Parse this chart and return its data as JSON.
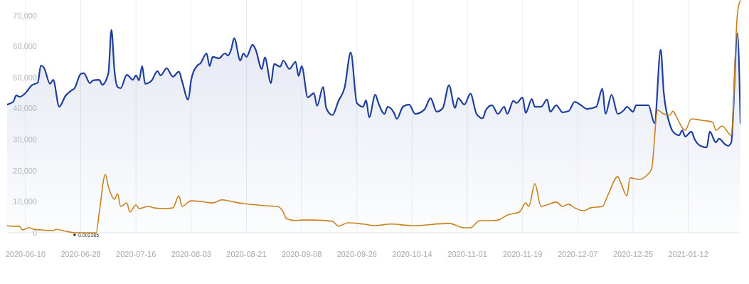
{
  "chart_data": {
    "type": "line",
    "xlim": [
      "2020-06-04",
      "2021-01-29"
    ],
    "xticks": [
      {
        "value": "2020-06-10",
        "label": "2020-06-10"
      },
      {
        "value": "2020-06-28",
        "label": "2020-06-28"
      },
      {
        "value": "2020-07-16",
        "label": "2020-07-16"
      },
      {
        "value": "2020-08-03",
        "label": "2020-08-03"
      },
      {
        "value": "2020-08-21",
        "label": "2020-08-21"
      },
      {
        "value": "2020-09-08",
        "label": "2020-09-08"
      },
      {
        "value": "2020-09-26",
        "label": "2020-09-26"
      },
      {
        "value": "2020-10-14",
        "label": "2020-10-14"
      },
      {
        "value": "2020-11-01",
        "label": "2020-11-01"
      },
      {
        "value": "2020-11-19",
        "label": "2020-11-19"
      },
      {
        "value": "2020-12-07",
        "label": "2020-12-07"
      },
      {
        "value": "2020-12-25",
        "label": "2020-12-25"
      },
      {
        "value": "2021-01-12",
        "label": "2021-01-12"
      }
    ],
    "ylim": [
      0,
      75000
    ],
    "yticks": [
      {
        "value": 0,
        "label": "0"
      },
      {
        "value": 10000,
        "label": "10,000"
      },
      {
        "value": 20000,
        "label": "20,000"
      },
      {
        "value": 30000,
        "label": "30,000"
      },
      {
        "value": 40000,
        "label": "40,000"
      },
      {
        "value": 50000,
        "label": "50,000"
      },
      {
        "value": 60000,
        "label": "60,000"
      },
      {
        "value": 70000,
        "label": "70,000"
      }
    ],
    "grid": "x",
    "marker": "none",
    "line_style": "solid",
    "annotations": [
      {
        "text": "0.002285",
        "x": "2020-06-26",
        "y": 0.002285
      }
    ],
    "series": [
      {
        "type": "area",
        "color": "#1f3f9a",
        "x": [
          "2020-06-04",
          "2020-06-06",
          "2020-06-07",
          "2020-06-08",
          "2020-06-10",
          "2020-06-12",
          "2020-06-14",
          "2020-06-15",
          "2020-06-16",
          "2020-06-18",
          "2020-06-19",
          "2020-06-21",
          "2020-06-23",
          "2020-06-25",
          "2020-06-26",
          "2020-06-28",
          "2020-06-29",
          "2020-07-01",
          "2020-07-02",
          "2020-07-04",
          "2020-07-05",
          "2020-07-07",
          "2020-07-08",
          "2020-07-09",
          "2020-07-10",
          "2020-07-11",
          "2020-07-13",
          "2020-07-15",
          "2020-07-16",
          "2020-07-17",
          "2020-07-18",
          "2020-07-19",
          "2020-07-21",
          "2020-07-23",
          "2020-07-24",
          "2020-07-26",
          "2020-07-28",
          "2020-07-30",
          "2020-07-31",
          "2020-08-02",
          "2020-08-03",
          "2020-08-05",
          "2020-08-06",
          "2020-08-08",
          "2020-08-09",
          "2020-08-10",
          "2020-08-12",
          "2020-08-14",
          "2020-08-15",
          "2020-08-16",
          "2020-08-17",
          "2020-08-19",
          "2020-08-20",
          "2020-08-21",
          "2020-08-23",
          "2020-08-24",
          "2020-08-26",
          "2020-08-27",
          "2020-08-29",
          "2020-08-30",
          "2020-09-01",
          "2020-09-02",
          "2020-09-04",
          "2020-09-06",
          "2020-09-07",
          "2020-09-08",
          "2020-09-10",
          "2020-09-12",
          "2020-09-13",
          "2020-09-15",
          "2020-09-16",
          "2020-09-18",
          "2020-09-20",
          "2020-09-22",
          "2020-09-24",
          "2020-09-26",
          "2020-09-28",
          "2020-09-29",
          "2020-09-30",
          "2020-10-02",
          "2020-10-03",
          "2020-10-05",
          "2020-10-06",
          "2020-10-08",
          "2020-10-09",
          "2020-10-11",
          "2020-10-13",
          "2020-10-15",
          "2020-10-18",
          "2020-10-20",
          "2020-10-22",
          "2020-10-24",
          "2020-10-26",
          "2020-10-28",
          "2020-10-29",
          "2020-10-31",
          "2020-11-02",
          "2020-11-04",
          "2020-11-06",
          "2020-11-07",
          "2020-11-09",
          "2020-11-11",
          "2020-11-13",
          "2020-11-14",
          "2020-11-16",
          "2020-11-17",
          "2020-11-19",
          "2020-11-20",
          "2020-11-22",
          "2020-11-23",
          "2020-11-25",
          "2020-11-27",
          "2020-11-28",
          "2020-11-30",
          "2020-12-02",
          "2020-12-04",
          "2020-12-06",
          "2020-12-08",
          "2020-12-10",
          "2020-12-13",
          "2020-12-15",
          "2020-12-16",
          "2020-12-18",
          "2020-12-20",
          "2020-12-22",
          "2020-12-23",
          "2020-12-25",
          "2020-12-26",
          "2020-12-30",
          "2021-01-01",
          "2021-01-03",
          "2021-01-04",
          "2021-01-06",
          "2021-01-07",
          "2021-01-09",
          "2021-01-10",
          "2021-01-11",
          "2021-01-13",
          "2021-01-14",
          "2021-01-16",
          "2021-01-18",
          "2021-01-19",
          "2021-01-21",
          "2021-01-22",
          "2021-01-24",
          "2021-01-25",
          "2021-01-26",
          "2021-01-28",
          "2021-01-29"
        ],
        "values": [
          41300,
          42200,
          44300,
          43800,
          45000,
          47500,
          48400,
          53900,
          53200,
          48000,
          49300,
          40600,
          44100,
          45900,
          46600,
          51200,
          51400,
          48200,
          49100,
          49300,
          47700,
          51400,
          65400,
          52100,
          47000,
          46600,
          50900,
          49300,
          50700,
          49100,
          53700,
          48000,
          48900,
          52100,
          50700,
          53000,
          50300,
          51900,
          48900,
          42900,
          49300,
          53900,
          54600,
          57800,
          53700,
          56700,
          56200,
          57800,
          57100,
          59000,
          62700,
          55500,
          57800,
          56700,
          60600,
          59000,
          52800,
          56500,
          48200,
          54400,
          53500,
          55500,
          52800,
          55100,
          50500,
          53700,
          43600,
          45000,
          40900,
          47000,
          40200,
          37900,
          42500,
          46800,
          58100,
          41800,
          40600,
          42700,
          37200,
          44500,
          41800,
          38300,
          40600,
          38800,
          36700,
          40600,
          41300,
          38300,
          39700,
          43400,
          39000,
          40200,
          47500,
          40200,
          43400,
          41300,
          44800,
          38300,
          36900,
          39500,
          41100,
          38300,
          40600,
          38300,
          42500,
          41800,
          43600,
          38600,
          43100,
          40600,
          40600,
          42900,
          39000,
          41100,
          38800,
          39200,
          42200,
          41100,
          39900,
          40600,
          46400,
          38300,
          44500,
          38300,
          39500,
          40600,
          39000,
          41100,
          41100,
          35300,
          59000,
          45200,
          34900,
          32600,
          31400,
          33000,
          31000,
          32600,
          30300,
          28000,
          27500,
          32600,
          29100,
          30300,
          28500,
          28000,
          29100,
          64300,
          35300
        ]
      },
      {
        "color": "#c8821e",
        "x": [
          "2020-06-04",
          "2020-06-06",
          "2020-06-08",
          "2020-06-09",
          "2020-06-11",
          "2020-06-13",
          "2020-06-15",
          "2020-06-19",
          "2020-06-20",
          "2020-06-23",
          "2020-06-26",
          "2020-07-03",
          "2020-07-04",
          "2020-07-06",
          "2020-07-07",
          "2020-07-09",
          "2020-07-10",
          "2020-07-11",
          "2020-07-13",
          "2020-07-14",
          "2020-07-16",
          "2020-07-17",
          "2020-07-20",
          "2020-07-22",
          "2020-07-25",
          "2020-07-28",
          "2020-07-30",
          "2020-07-31",
          "2020-08-03",
          "2020-08-06",
          "2020-08-10",
          "2020-08-13",
          "2020-08-16",
          "2020-08-20",
          "2020-08-24",
          "2020-08-27",
          "2020-08-31",
          "2020-09-02",
          "2020-09-03",
          "2020-09-06",
          "2020-09-08",
          "2020-09-12",
          "2020-09-18",
          "2020-09-20",
          "2020-09-23",
          "2020-09-28",
          "2020-10-02",
          "2020-10-07",
          "2020-10-14",
          "2020-10-26",
          "2020-10-31",
          "2020-11-02",
          "2020-11-05",
          "2020-11-09",
          "2020-11-11",
          "2020-11-14",
          "2020-11-18",
          "2020-11-20",
          "2020-11-21",
          "2020-11-23",
          "2020-11-25",
          "2020-11-27",
          "2020-11-30",
          "2020-12-02",
          "2020-12-04",
          "2020-12-06",
          "2020-12-09",
          "2020-12-11",
          "2020-12-15",
          "2020-12-17",
          "2020-12-20",
          "2020-12-21",
          "2020-12-23",
          "2020-12-24",
          "2020-12-27",
          "2020-12-29",
          "2020-12-31",
          "2021-01-02",
          "2021-01-04",
          "2021-01-06",
          "2021-01-07",
          "2021-01-08",
          "2021-01-11",
          "2021-01-13",
          "2021-01-16",
          "2021-01-20",
          "2021-01-21",
          "2021-01-23",
          "2021-01-26",
          "2021-01-28",
          "2021-01-29"
        ],
        "values": [
          2300,
          2100,
          2100,
          900,
          1600,
          1100,
          900,
          700,
          1100,
          500,
          0,
          0,
          6200,
          18800,
          14900,
          10800,
          12600,
          8500,
          9600,
          6700,
          9000,
          7800,
          8500,
          8000,
          7800,
          8000,
          11900,
          8500,
          10300,
          10100,
          9600,
          10600,
          10100,
          9400,
          9000,
          8700,
          8500,
          6700,
          4600,
          3900,
          4100,
          4100,
          3700,
          2100,
          3200,
          2800,
          2300,
          2800,
          2300,
          3000,
          1600,
          1600,
          3900,
          3900,
          4100,
          5700,
          6700,
          9600,
          8500,
          15800,
          8500,
          9000,
          9900,
          8500,
          9200,
          8000,
          7100,
          8000,
          8500,
          12600,
          18100,
          16100,
          11900,
          17700,
          17200,
          18100,
          20400,
          39500,
          38300,
          37900,
          39200,
          37600,
          33000,
          36700,
          36300,
          35600,
          33000,
          34400,
          31400,
          70500,
          75000
        ]
      }
    ]
  }
}
